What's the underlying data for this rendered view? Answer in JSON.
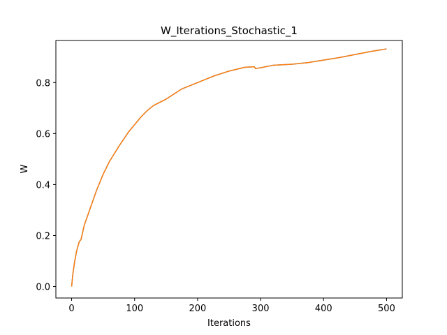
{
  "chart_data": {
    "type": "line",
    "title": "W_Iterations_Stochastic_1",
    "xlabel": "Iterations",
    "ylabel": "W",
    "xlim": [
      -25,
      525
    ],
    "ylim": [
      -0.045,
      0.965
    ],
    "xticks": [
      0,
      100,
      200,
      300,
      400,
      500
    ],
    "yticks": [
      0.0,
      0.2,
      0.4,
      0.6,
      0.8
    ],
    "xtick_labels": [
      "0",
      "100",
      "200",
      "300",
      "400",
      "500"
    ],
    "ytick_labels": [
      "0.0",
      "0.2",
      "0.4",
      "0.6",
      "0.8"
    ],
    "grid": false,
    "legend": "none",
    "series": [
      {
        "color": "#1f77b4",
        "x": [
          0,
          2,
          5,
          8,
          12,
          15,
          20,
          25,
          30,
          40,
          50,
          60,
          75,
          90,
          100,
          110,
          120,
          130,
          150,
          175,
          200,
          225,
          250,
          275,
          290,
          292,
          300,
          320,
          350,
          375,
          400,
          425,
          450,
          475,
          490,
          500
        ],
        "y": [
          0.0,
          0.05,
          0.1,
          0.14,
          0.175,
          0.185,
          0.24,
          0.275,
          0.31,
          0.38,
          0.44,
          0.49,
          0.55,
          0.605,
          0.635,
          0.665,
          0.69,
          0.71,
          0.735,
          0.775,
          0.8,
          0.825,
          0.845,
          0.86,
          0.862,
          0.855,
          0.858,
          0.868,
          0.872,
          0.878,
          0.888,
          0.898,
          0.91,
          0.922,
          0.928,
          0.932
        ]
      },
      {
        "color": "#ff7f0e",
        "x": [
          0,
          2,
          5,
          8,
          12,
          15,
          20,
          25,
          30,
          40,
          50,
          60,
          75,
          90,
          100,
          110,
          120,
          130,
          150,
          175,
          200,
          225,
          250,
          275,
          290,
          292,
          300,
          320,
          350,
          375,
          400,
          425,
          450,
          475,
          490,
          500
        ],
        "y": [
          0.0,
          0.05,
          0.1,
          0.14,
          0.175,
          0.185,
          0.24,
          0.275,
          0.31,
          0.38,
          0.44,
          0.49,
          0.55,
          0.605,
          0.635,
          0.665,
          0.69,
          0.71,
          0.735,
          0.775,
          0.8,
          0.825,
          0.845,
          0.86,
          0.862,
          0.855,
          0.858,
          0.868,
          0.872,
          0.878,
          0.888,
          0.898,
          0.91,
          0.922,
          0.928,
          0.932
        ]
      }
    ]
  }
}
